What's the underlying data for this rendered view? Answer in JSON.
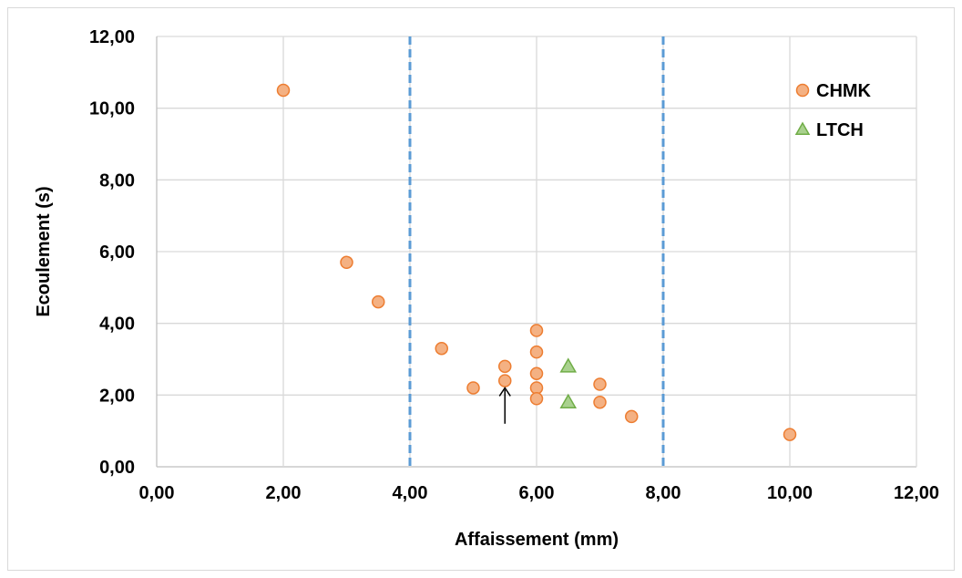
{
  "chart_data": {
    "type": "scatter",
    "xlabel": "Affaissement (mm)",
    "ylabel": "Ecoulement (s)",
    "xlim": [
      0,
      12
    ],
    "ylim": [
      0,
      12
    ],
    "x_ticks": [
      "0,00",
      "2,00",
      "4,00",
      "6,00",
      "8,00",
      "10,00",
      "12,00"
    ],
    "y_ticks": [
      "0,00",
      "2,00",
      "4,00",
      "6,00",
      "8,00",
      "10,00",
      "12,00"
    ],
    "grid": true,
    "legend_position": "top-right",
    "reference_lines_x": [
      4,
      8
    ],
    "arrow": {
      "x": 5.5,
      "y_from": 1.2,
      "y_to": 2.2
    },
    "series": [
      {
        "name": "CHMK",
        "marker": "circle",
        "color": "#f4b183",
        "edge_color": "#ed7d31",
        "points": [
          [
            2.0,
            10.5
          ],
          [
            3.0,
            5.7
          ],
          [
            3.5,
            4.6
          ],
          [
            4.5,
            3.3
          ],
          [
            5.0,
            2.2
          ],
          [
            5.5,
            2.8
          ],
          [
            5.5,
            2.4
          ],
          [
            6.0,
            3.8
          ],
          [
            6.0,
            3.2
          ],
          [
            6.0,
            2.6
          ],
          [
            6.0,
            2.2
          ],
          [
            6.0,
            1.9
          ],
          [
            7.0,
            2.3
          ],
          [
            7.0,
            1.8
          ],
          [
            7.5,
            1.4
          ],
          [
            10.0,
            0.9
          ]
        ]
      },
      {
        "name": "LTCH",
        "marker": "triangle",
        "color": "#a9d18e",
        "edge_color": "#70ad47",
        "points": [
          [
            6.5,
            2.8
          ],
          [
            6.5,
            1.8
          ]
        ]
      }
    ],
    "reference_line_color": "#5b9bd5",
    "grid_color": "#d9d9d9"
  }
}
